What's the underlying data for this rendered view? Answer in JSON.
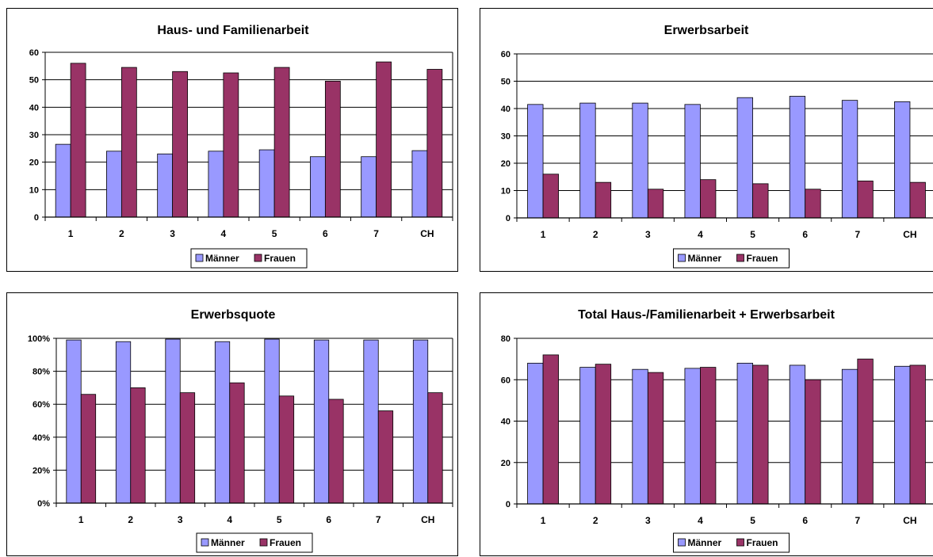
{
  "chart_data": [
    {
      "type": "bar",
      "title": "Haus- und Familienarbeit",
      "categories": [
        "1",
        "2",
        "3",
        "4",
        "5",
        "6",
        "7",
        "CH"
      ],
      "series": [
        {
          "name": "Männer",
          "values": [
            26.5,
            24,
            23,
            24,
            24.5,
            22,
            22,
            24.2
          ]
        },
        {
          "name": "Frauen",
          "values": [
            56,
            54.5,
            53,
            52.5,
            54.5,
            49.5,
            56.5,
            53.8
          ]
        }
      ],
      "ylim": [
        0,
        60
      ],
      "yticks": [
        0,
        10,
        20,
        30,
        40,
        50,
        60
      ],
      "ytick_labels": [
        "0",
        "10",
        "20",
        "30",
        "40",
        "50",
        "60"
      ],
      "grid": true,
      "legend": "bottom-center"
    },
    {
      "type": "bar",
      "title": "Erwerbsarbeit",
      "categories": [
        "1",
        "2",
        "3",
        "4",
        "5",
        "6",
        "7",
        "CH"
      ],
      "series": [
        {
          "name": "Männer",
          "values": [
            41.5,
            42,
            42,
            41.5,
            44,
            44.5,
            43,
            42.5
          ]
        },
        {
          "name": "Frauen",
          "values": [
            16,
            13,
            10.5,
            14,
            12.5,
            10.5,
            13.5,
            13
          ]
        }
      ],
      "ylim": [
        0,
        60
      ],
      "yticks": [
        0,
        10,
        20,
        30,
        40,
        50,
        60
      ],
      "ytick_labels": [
        "0",
        "10",
        "20",
        "30",
        "40",
        "50",
        "60"
      ],
      "grid": true,
      "legend": "bottom-center"
    },
    {
      "type": "bar",
      "title": "Erwerbsquote",
      "categories": [
        "1",
        "2",
        "3",
        "4",
        "5",
        "6",
        "7",
        "CH"
      ],
      "series": [
        {
          "name": "Männer",
          "values": [
            99,
            98,
            99.5,
            98,
            99.5,
            99,
            99,
            99
          ]
        },
        {
          "name": "Frauen",
          "values": [
            66,
            70,
            67,
            73,
            65,
            63,
            56,
            67
          ]
        }
      ],
      "ylim": [
        0,
        100
      ],
      "yticks": [
        0,
        20,
        40,
        60,
        80,
        100
      ],
      "ytick_labels": [
        "0%",
        "20%",
        "40%",
        "60%",
        "80%",
        "100%"
      ],
      "grid": true,
      "legend": "bottom-center"
    },
    {
      "type": "bar",
      "title": "Total Haus-/Familienarbeit + Erwerbsarbeit",
      "categories": [
        "1",
        "2",
        "3",
        "4",
        "5",
        "6",
        "7",
        "CH"
      ],
      "series": [
        {
          "name": "Männer",
          "values": [
            68,
            66,
            65,
            65.5,
            68,
            67,
            65,
            66.5
          ]
        },
        {
          "name": "Frauen",
          "values": [
            72,
            67.5,
            63.5,
            66,
            67,
            60,
            70,
            67
          ]
        }
      ],
      "ylim": [
        0,
        80
      ],
      "yticks": [
        0,
        20,
        40,
        60,
        80
      ],
      "ytick_labels": [
        "0",
        "20",
        "40",
        "60",
        "80"
      ],
      "grid": true,
      "legend": "bottom-center"
    }
  ],
  "colors": {
    "maenner": "#9999ff",
    "frauen": "#993366",
    "grid": "#000000",
    "text": "#000000"
  }
}
